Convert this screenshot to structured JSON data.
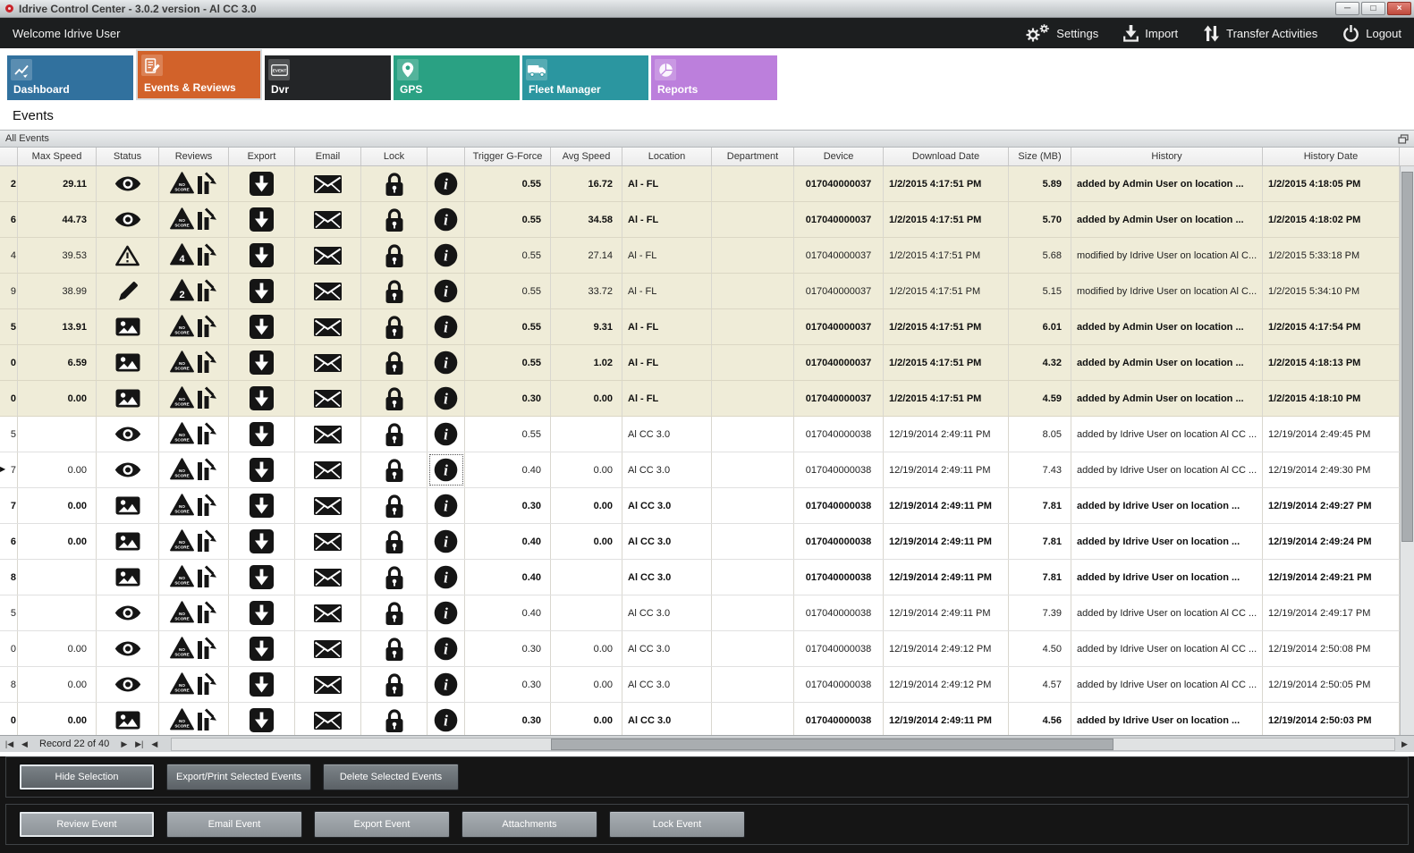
{
  "window": {
    "title": "Idrive Control Center - 3.0.2 version - Al CC 3.0",
    "controls": [
      {
        "name": "minimize",
        "glyph": "─"
      },
      {
        "name": "maximize",
        "glyph": "□"
      },
      {
        "name": "close",
        "glyph": "×"
      }
    ]
  },
  "topbar": {
    "welcome": "Welcome Idrive User",
    "actions": [
      {
        "label": "Settings",
        "icon": "gears"
      },
      {
        "label": "Import",
        "icon": "import"
      },
      {
        "label": "Transfer Activities",
        "icon": "transfer"
      },
      {
        "label": "Logout",
        "icon": "power"
      }
    ]
  },
  "tabs": [
    {
      "label": "Dashboard",
      "icon": "line-chart",
      "color": "#31719e",
      "active": false
    },
    {
      "label": "Events & Reviews",
      "icon": "edit-list",
      "color": "#d2622a",
      "active": true
    },
    {
      "label": "Dvr",
      "icon": "event-box",
      "color": "#232527",
      "active": false
    },
    {
      "label": "GPS",
      "icon": "map-pin",
      "color": "#2aa183",
      "active": false
    },
    {
      "label": "Fleet Manager",
      "icon": "truck",
      "color": "#2b96a0",
      "active": false
    },
    {
      "label": "Reports",
      "icon": "pie-chart",
      "color": "#bc7fdc",
      "active": false
    }
  ],
  "page_title": "Events",
  "panel": {
    "title": "All Events"
  },
  "colors": {
    "selected_row_bg": "#efecd8",
    "active_tab": "#d2622a"
  },
  "grid": {
    "columns": [
      "Max Speed",
      "Status",
      "Reviews",
      "Export",
      "Email",
      "Lock",
      "",
      "Trigger G-Force",
      "Avg Speed",
      "Location",
      "Department",
      "Device",
      "Download Date",
      "Size (MB)",
      "History",
      "History Date"
    ],
    "rows": [
      {
        "edge": "2",
        "marker": false,
        "max_speed": "29.11",
        "status": "eye",
        "review": "NO SCORE",
        "trigger": "0.55",
        "avg_speed": "16.72",
        "location": "Al - FL",
        "department": "",
        "device": "017040000037",
        "download_date": "1/2/2015 4:17:51 PM",
        "size": "5.89",
        "history": "added by Admin User on location ...",
        "history_date": "1/2/2015 4:18:05 PM",
        "bold": true,
        "shaded": true,
        "selected_info": false
      },
      {
        "edge": "6",
        "marker": false,
        "max_speed": "44.73",
        "status": "eye",
        "review": "NO SCORE",
        "trigger": "0.55",
        "avg_speed": "34.58",
        "location": "Al - FL",
        "department": "",
        "device": "017040000037",
        "download_date": "1/2/2015 4:17:51 PM",
        "size": "5.70",
        "history": "added by Admin User on location ...",
        "history_date": "1/2/2015 4:18:02 PM",
        "bold": true,
        "shaded": true,
        "selected_info": false
      },
      {
        "edge": "4",
        "marker": false,
        "max_speed": "39.53",
        "status": "warning",
        "review": "4",
        "trigger": "0.55",
        "avg_speed": "27.14",
        "location": "Al - FL",
        "department": "",
        "device": "017040000037",
        "download_date": "1/2/2015 4:17:51 PM",
        "size": "5.68",
        "history": "modified by Idrive User on location Al C...",
        "history_date": "1/2/2015 5:33:18 PM",
        "bold": false,
        "shaded": true,
        "selected_info": false
      },
      {
        "edge": "9",
        "marker": false,
        "max_speed": "38.99",
        "status": "pencil",
        "review": "2",
        "trigger": "0.55",
        "avg_speed": "33.72",
        "location": "Al - FL",
        "department": "",
        "device": "017040000037",
        "download_date": "1/2/2015 4:17:51 PM",
        "size": "5.15",
        "history": "modified by Idrive User on location Al C...",
        "history_date": "1/2/2015 5:34:10 PM",
        "bold": false,
        "shaded": true,
        "selected_info": false
      },
      {
        "edge": "5",
        "marker": false,
        "max_speed": "13.91",
        "status": "picture",
        "review": "NO SCORE",
        "trigger": "0.55",
        "avg_speed": "9.31",
        "location": "Al - FL",
        "department": "",
        "device": "017040000037",
        "download_date": "1/2/2015 4:17:51 PM",
        "size": "6.01",
        "history": "added by Admin User on location ...",
        "history_date": "1/2/2015 4:17:54 PM",
        "bold": true,
        "shaded": true,
        "selected_info": false
      },
      {
        "edge": "0",
        "marker": false,
        "max_speed": "6.59",
        "status": "picture",
        "review": "NO SCORE",
        "trigger": "0.55",
        "avg_speed": "1.02",
        "location": "Al - FL",
        "department": "",
        "device": "017040000037",
        "download_date": "1/2/2015 4:17:51 PM",
        "size": "4.32",
        "history": "added by Admin User on location ...",
        "history_date": "1/2/2015 4:18:13 PM",
        "bold": true,
        "shaded": true,
        "selected_info": false
      },
      {
        "edge": "0",
        "marker": false,
        "max_speed": "0.00",
        "status": "picture",
        "review": "NO SCORE",
        "trigger": "0.30",
        "avg_speed": "0.00",
        "location": "Al - FL",
        "department": "",
        "device": "017040000037",
        "download_date": "1/2/2015 4:17:51 PM",
        "size": "4.59",
        "history": "added by Admin User on location ...",
        "history_date": "1/2/2015 4:18:10 PM",
        "bold": true,
        "shaded": true,
        "selected_info": false
      },
      {
        "edge": "5",
        "marker": false,
        "max_speed": "",
        "status": "eye",
        "review": "NO SCORE",
        "trigger": "0.55",
        "avg_speed": "",
        "location": "Al CC 3.0",
        "department": "",
        "device": "017040000038",
        "download_date": "12/19/2014 2:49:11 PM",
        "size": "8.05",
        "history": "added by Idrive User on location Al CC ...",
        "history_date": "12/19/2014 2:49:45 PM",
        "bold": false,
        "shaded": false,
        "selected_info": false
      },
      {
        "edge": "7",
        "marker": true,
        "max_speed": "0.00",
        "status": "eye",
        "review": "NO SCORE",
        "trigger": "0.40",
        "avg_speed": "0.00",
        "location": "Al CC 3.0",
        "department": "",
        "device": "017040000038",
        "download_date": "12/19/2014 2:49:11 PM",
        "size": "7.43",
        "history": "added by Idrive User on location Al CC ...",
        "history_date": "12/19/2014 2:49:30 PM",
        "bold": false,
        "shaded": false,
        "selected_info": true
      },
      {
        "edge": "7",
        "marker": false,
        "max_speed": "0.00",
        "status": "picture",
        "review": "NO SCORE",
        "trigger": "0.30",
        "avg_speed": "0.00",
        "location": "Al CC 3.0",
        "department": "",
        "device": "017040000038",
        "download_date": "12/19/2014 2:49:11 PM",
        "size": "7.81",
        "history": "added by Idrive User on location ...",
        "history_date": "12/19/2014 2:49:27 PM",
        "bold": true,
        "shaded": false,
        "selected_info": false
      },
      {
        "edge": "6",
        "marker": false,
        "max_speed": "0.00",
        "status": "picture",
        "review": "NO SCORE",
        "trigger": "0.40",
        "avg_speed": "0.00",
        "location": "Al CC 3.0",
        "department": "",
        "device": "017040000038",
        "download_date": "12/19/2014 2:49:11 PM",
        "size": "7.81",
        "history": "added by Idrive User on location ...",
        "history_date": "12/19/2014 2:49:24 PM",
        "bold": true,
        "shaded": false,
        "selected_info": false
      },
      {
        "edge": "8",
        "marker": false,
        "max_speed": "",
        "status": "picture",
        "review": "NO SCORE",
        "trigger": "0.40",
        "avg_speed": "",
        "location": "Al CC 3.0",
        "department": "",
        "device": "017040000038",
        "download_date": "12/19/2014 2:49:11 PM",
        "size": "7.81",
        "history": "added by Idrive User on location ...",
        "history_date": "12/19/2014 2:49:21 PM",
        "bold": true,
        "shaded": false,
        "selected_info": false
      },
      {
        "edge": "5",
        "marker": false,
        "max_speed": "",
        "status": "eye",
        "review": "NO SCORE",
        "trigger": "0.40",
        "avg_speed": "",
        "location": "Al CC 3.0",
        "department": "",
        "device": "017040000038",
        "download_date": "12/19/2014 2:49:11 PM",
        "size": "7.39",
        "history": "added by Idrive User on location Al CC ...",
        "history_date": "12/19/2014 2:49:17 PM",
        "bold": false,
        "shaded": false,
        "selected_info": false
      },
      {
        "edge": "0",
        "marker": false,
        "max_speed": "0.00",
        "status": "eye",
        "review": "NO SCORE",
        "trigger": "0.30",
        "avg_speed": "0.00",
        "location": "Al CC 3.0",
        "department": "",
        "device": "017040000038",
        "download_date": "12/19/2014 2:49:12 PM",
        "size": "4.50",
        "history": "added by Idrive User on location Al CC ...",
        "history_date": "12/19/2014 2:50:08 PM",
        "bold": false,
        "shaded": false,
        "selected_info": false
      },
      {
        "edge": "8",
        "marker": false,
        "max_speed": "0.00",
        "status": "eye",
        "review": "NO SCORE",
        "trigger": "0.30",
        "avg_speed": "0.00",
        "location": "Al CC 3.0",
        "department": "",
        "device": "017040000038",
        "download_date": "12/19/2014 2:49:12 PM",
        "size": "4.57",
        "history": "added by Idrive User on location Al CC ...",
        "history_date": "12/19/2014 2:50:05 PM",
        "bold": false,
        "shaded": false,
        "selected_info": false
      },
      {
        "edge": "0",
        "marker": false,
        "max_speed": "0.00",
        "status": "picture",
        "review": "NO SCORE",
        "trigger": "0.30",
        "avg_speed": "0.00",
        "location": "Al CC 3.0",
        "department": "",
        "device": "017040000038",
        "download_date": "12/19/2014 2:49:11 PM",
        "size": "4.56",
        "history": "added by Idrive User on location ...",
        "history_date": "12/19/2014 2:50:03 PM",
        "bold": true,
        "shaded": false,
        "selected_info": false
      }
    ]
  },
  "pager": {
    "record_text": "Record 22 of 40",
    "first": "|◀",
    "prev": "◀",
    "next": "▶",
    "last": "▶|",
    "scroll_left": "◀",
    "scroll_right": "▶"
  },
  "action_bars": [
    {
      "buttons": [
        {
          "label": "Hide Selection",
          "focused": true
        },
        {
          "label": "Export/Print Selected Events",
          "focused": false
        },
        {
          "label": "Delete Selected  Events",
          "focused": false
        }
      ]
    },
    {
      "buttons": [
        {
          "label": "Review Event",
          "focused": true
        },
        {
          "label": "Email Event",
          "focused": false
        },
        {
          "label": "Export Event",
          "focused": false
        },
        {
          "label": "Attachments",
          "focused": false
        },
        {
          "label": "Lock Event",
          "focused": false
        }
      ]
    }
  ]
}
